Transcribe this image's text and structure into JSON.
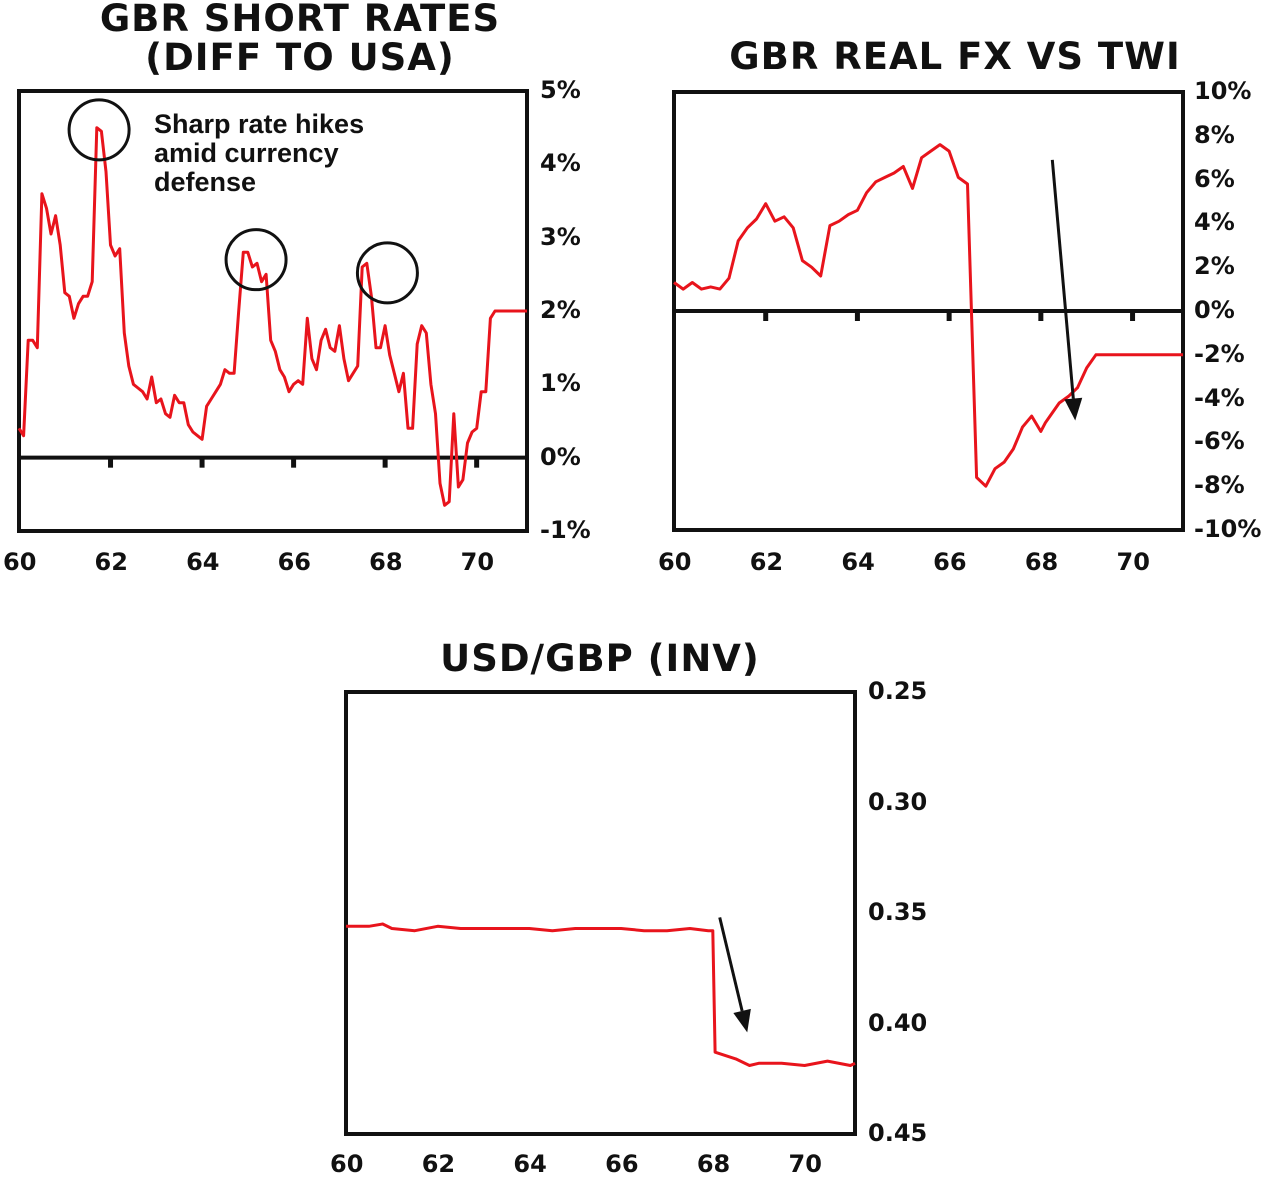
{
  "colors": {
    "series": "#e8141c",
    "axes": "#111111",
    "background": "#ffffff"
  },
  "chart_data": [
    {
      "id": "rates",
      "type": "line",
      "title": "GBR SHORT RATES\n(DIFF TO USA)",
      "xlabel": "",
      "ylabel": "",
      "xlim": [
        60,
        71.1
      ],
      "ylim": [
        -1,
        5
      ],
      "x_ticks": [
        "60",
        "62",
        "64",
        "66",
        "68",
        "70"
      ],
      "y_ticks": [
        "5%",
        "4%",
        "3%",
        "2%",
        "1%",
        "0%",
        "-1%"
      ],
      "grid": false,
      "zero_line": 0,
      "annotation": "Sharp rate hikes\namid currency\ndefense",
      "circles": [
        {
          "x": 61.75,
          "y": 4.47
        },
        {
          "x": 65.18,
          "y": 2.7
        },
        {
          "x": 68.05,
          "y": 2.52
        }
      ],
      "series": [
        {
          "x": [
            60.0,
            60.1,
            60.2,
            60.3,
            60.4,
            60.5,
            60.6,
            60.7,
            60.8,
            60.9,
            61.0,
            61.1,
            61.2,
            61.3,
            61.4,
            61.5,
            61.6,
            61.7,
            61.8,
            61.9,
            62.0,
            62.1,
            62.2,
            62.3,
            62.4,
            62.5,
            62.6,
            62.7,
            62.8,
            62.9,
            63.0,
            63.1,
            63.2,
            63.3,
            63.4,
            63.5,
            63.6,
            63.7,
            63.8,
            63.9,
            64.0,
            64.1,
            64.2,
            64.3,
            64.4,
            64.5,
            64.6,
            64.7,
            64.8,
            64.9,
            65.0,
            65.1,
            65.2,
            65.3,
            65.4,
            65.5,
            65.6,
            65.7,
            65.8,
            65.9,
            66.0,
            66.1,
            66.2,
            66.3,
            66.4,
            66.5,
            66.6,
            66.7,
            66.8,
            66.9,
            67.0,
            67.1,
            67.2,
            67.3,
            67.4,
            67.5,
            67.6,
            67.7,
            67.8,
            67.9,
            68.0,
            68.1,
            68.2,
            68.3,
            68.4,
            68.5,
            68.6,
            68.7,
            68.8,
            68.9,
            69.0,
            69.1,
            69.2,
            69.3,
            69.4,
            69.5,
            69.6,
            69.7,
            69.8,
            69.9,
            70.0,
            70.1,
            70.2,
            70.3,
            70.4,
            70.5,
            70.6,
            70.7,
            70.8,
            70.9,
            71.0,
            71.1
          ],
          "values": [
            0.4,
            0.3,
            1.6,
            1.6,
            1.5,
            3.6,
            3.4,
            3.05,
            3.3,
            2.9,
            2.25,
            2.2,
            1.9,
            2.1,
            2.2,
            2.2,
            2.4,
            4.5,
            4.45,
            3.9,
            2.9,
            2.75,
            2.85,
            1.7,
            1.25,
            1.0,
            0.95,
            0.9,
            0.8,
            1.1,
            0.75,
            0.8,
            0.6,
            0.55,
            0.85,
            0.75,
            0.75,
            0.45,
            0.35,
            0.3,
            0.25,
            0.7,
            0.8,
            0.9,
            1.0,
            1.2,
            1.15,
            1.15,
            2.0,
            2.8,
            2.8,
            2.6,
            2.65,
            2.4,
            2.5,
            1.6,
            1.45,
            1.2,
            1.1,
            0.9,
            1.0,
            1.05,
            1.0,
            1.9,
            1.35,
            1.2,
            1.6,
            1.75,
            1.5,
            1.45,
            1.8,
            1.35,
            1.05,
            1.15,
            1.25,
            2.6,
            2.65,
            2.2,
            1.5,
            1.5,
            1.8,
            1.4,
            1.15,
            0.9,
            1.15,
            0.4,
            0.4,
            1.55,
            1.8,
            1.7,
            1.0,
            0.6,
            -0.35,
            -0.65,
            -0.6,
            0.6,
            -0.4,
            -0.3,
            0.2,
            0.35,
            0.4,
            0.9,
            0.9,
            1.9,
            2.0,
            2.0,
            2.0,
            2.0,
            2.0,
            2.0,
            2.0,
            2.0
          ]
        }
      ]
    },
    {
      "id": "realfx",
      "type": "line",
      "title": "GBR REAL FX VS TWI",
      "xlabel": "",
      "ylabel": "",
      "xlim": [
        60,
        71.1
      ],
      "ylim": [
        -10,
        10
      ],
      "x_ticks": [
        "60",
        "62",
        "64",
        "66",
        "68",
        "70"
      ],
      "y_ticks": [
        "10%",
        "8%",
        "6%",
        "4%",
        "2%",
        "0%",
        "-2%",
        "-4%",
        "-6%",
        "-8%",
        "-10%"
      ],
      "grid": false,
      "zero_line": 0,
      "arrow": {
        "from": [
          68.25,
          6.9
        ],
        "to": [
          68.75,
          -5.0
        ]
      },
      "series": [
        {
          "x": [
            60.0,
            60.2,
            60.4,
            60.6,
            60.8,
            61.0,
            61.2,
            61.4,
            61.6,
            61.8,
            62.0,
            62.2,
            62.4,
            62.6,
            62.8,
            63.0,
            63.2,
            63.4,
            63.6,
            63.8,
            64.0,
            64.2,
            64.4,
            64.6,
            64.8,
            65.0,
            65.2,
            65.4,
            65.6,
            65.8,
            66.0,
            66.2,
            66.4,
            66.6,
            66.8,
            67.0,
            67.2,
            67.4,
            67.6,
            67.8,
            68.0,
            68.1,
            68.2,
            68.4,
            68.6,
            68.8,
            69.0,
            69.2,
            69.4,
            69.6,
            69.8,
            70.0,
            70.2,
            70.4,
            70.6,
            70.8,
            71.0,
            71.1
          ],
          "values": [
            1.3,
            1.0,
            1.3,
            1.0,
            1.1,
            1.0,
            1.5,
            3.2,
            3.8,
            4.2,
            4.9,
            4.1,
            4.3,
            3.8,
            2.3,
            2.0,
            1.6,
            3.9,
            4.1,
            4.4,
            4.6,
            5.4,
            5.9,
            6.1,
            6.3,
            6.6,
            5.6,
            7.0,
            7.3,
            7.6,
            7.3,
            6.1,
            5.8,
            -7.6,
            -8.0,
            -7.2,
            -6.9,
            -6.3,
            -5.3,
            -4.8,
            -5.5,
            -5.1,
            -4.8,
            -4.2,
            -3.9,
            -3.5,
            -2.6,
            -2.0,
            -2.0,
            -2.0,
            -2.0,
            -2.0,
            -2.0,
            -2.0,
            -2.0,
            -2.0,
            -2.0,
            -2.0
          ]
        }
      ]
    },
    {
      "id": "usdgbp",
      "type": "line",
      "title": "USD/GBP (INV)",
      "xlabel": "",
      "ylabel": "",
      "xlim": [
        60,
        71.1
      ],
      "ylim": [
        0.45,
        0.25
      ],
      "y_inverted": true,
      "x_ticks": [
        "60",
        "62",
        "64",
        "66",
        "68",
        "70"
      ],
      "y_ticks": [
        "0.25",
        "0.30",
        "0.35",
        "0.40",
        "0.45"
      ],
      "grid": false,
      "arrow": {
        "from": [
          68.15,
          0.352
        ],
        "to": [
          68.75,
          0.404
        ]
      },
      "series": [
        {
          "x": [
            60.0,
            60.5,
            60.8,
            61.0,
            61.5,
            62.0,
            62.5,
            63.0,
            63.5,
            64.0,
            64.5,
            65.0,
            65.5,
            66.0,
            66.5,
            67.0,
            67.5,
            67.9,
            68.0,
            68.05,
            68.2,
            68.5,
            68.8,
            69.0,
            69.5,
            70.0,
            70.5,
            71.0,
            71.1
          ],
          "values": [
            0.356,
            0.356,
            0.355,
            0.357,
            0.358,
            0.356,
            0.357,
            0.357,
            0.357,
            0.357,
            0.358,
            0.357,
            0.357,
            0.357,
            0.358,
            0.358,
            0.357,
            0.358,
            0.358,
            0.413,
            0.414,
            0.416,
            0.419,
            0.418,
            0.418,
            0.419,
            0.417,
            0.419,
            0.418
          ]
        }
      ]
    }
  ]
}
